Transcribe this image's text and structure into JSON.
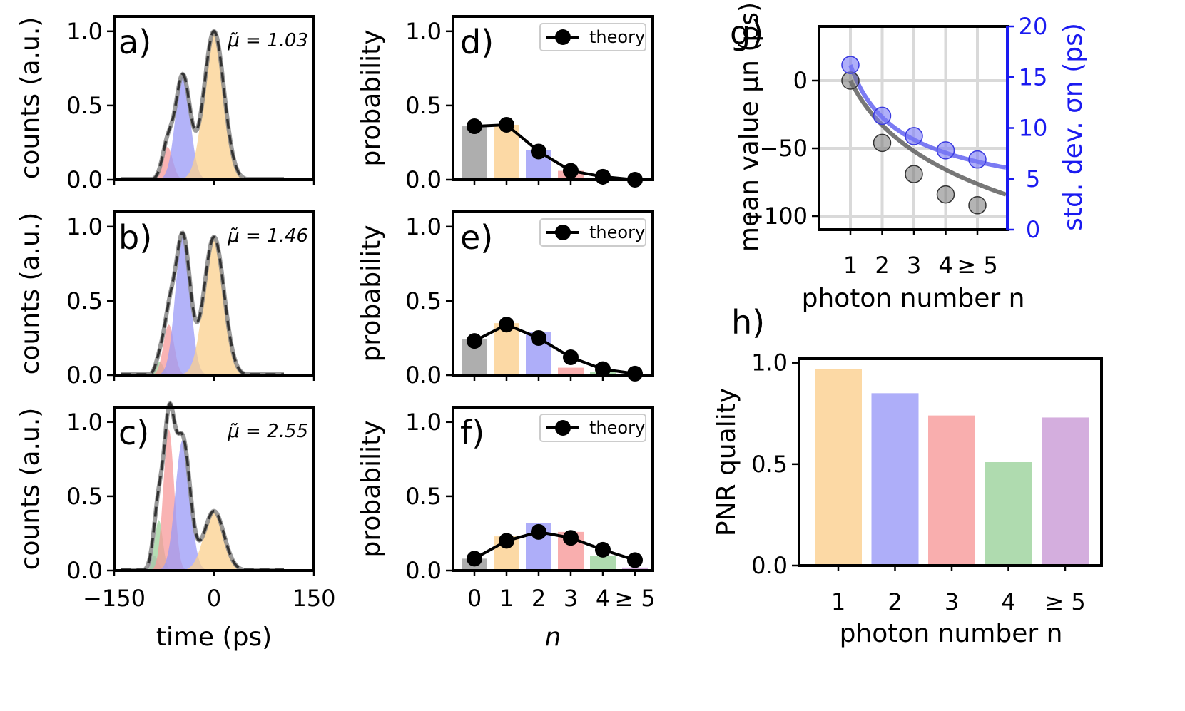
{
  "colors": {
    "n0": "#9a9a9a",
    "n1": "#fbd08e",
    "n2": "#9a9af7",
    "n3": "#f79a9a",
    "n4": "#9bd29b",
    "n5": "#c99ad6",
    "mean": "#555555",
    "std": "#5a5af0",
    "stdaxis": "#1a1af0"
  },
  "chart_data": [
    {
      "id": "a",
      "type": "area",
      "panel_label": "a)",
      "annotation": "μ̃ = 1.03",
      "xlabel": "time (ps)",
      "ylabel": "counts (a.u.)",
      "xlim": [
        -150,
        150
      ],
      "ylim": [
        0,
        1.1
      ],
      "xticks": [
        "−150",
        "0",
        "150"
      ],
      "yticks": [
        "0.0",
        "0.5",
        "1.0"
      ],
      "components": [
        {
          "n": 3,
          "center": -70,
          "sigma": 8,
          "amp": 0.22
        },
        {
          "n": 2,
          "center": -47,
          "sigma": 11,
          "amp": 0.7
        },
        {
          "n": 1,
          "center": 0,
          "sigma": 15,
          "amp": 1.0
        }
      ]
    },
    {
      "id": "b",
      "type": "area",
      "panel_label": "b)",
      "annotation": "μ̃ = 1.46",
      "xlabel": "time (ps)",
      "ylabel": "counts (a.u.)",
      "xlim": [
        -150,
        150
      ],
      "ylim": [
        0,
        1.1
      ],
      "xticks": [
        "−150",
        "0",
        "150"
      ],
      "yticks": [
        "0.0",
        "0.5",
        "1.0"
      ],
      "components": [
        {
          "n": 4,
          "center": -82,
          "sigma": 6,
          "amp": 0.09
        },
        {
          "n": 3,
          "center": -68,
          "sigma": 8,
          "amp": 0.34
        },
        {
          "n": 2,
          "center": -47,
          "sigma": 11,
          "amp": 0.94
        },
        {
          "n": 1,
          "center": 0,
          "sigma": 15,
          "amp": 0.93
        }
      ]
    },
    {
      "id": "c",
      "type": "area",
      "panel_label": "c)",
      "annotation": "μ̃ = 2.55",
      "xlabel": "time (ps)",
      "ylabel": "counts (a.u.)",
      "xlim": [
        -150,
        150
      ],
      "ylim": [
        0,
        1.1
      ],
      "xticks": [
        "−150",
        "0",
        "150"
      ],
      "yticks": [
        "0.0",
        "0.5",
        "1.0"
      ],
      "components": [
        {
          "n": 5,
          "center": -90,
          "sigma": 6,
          "amp": 0.1
        },
        {
          "n": 4,
          "center": -83,
          "sigma": 6,
          "amp": 0.34
        },
        {
          "n": 3,
          "center": -68,
          "sigma": 8,
          "amp": 0.95
        },
        {
          "n": 2,
          "center": -47,
          "sigma": 11,
          "amp": 0.88
        },
        {
          "n": 1,
          "center": 0,
          "sigma": 15,
          "amp": 0.4
        }
      ]
    },
    {
      "id": "d",
      "type": "bar",
      "panel_label": "d)",
      "xlabel": "n",
      "ylabel": "probability",
      "categories": [
        "0",
        "1",
        "2",
        "3",
        "4",
        "≥ 5"
      ],
      "ylim": [
        0,
        1.1
      ],
      "yticks": [
        "0.0",
        "0.5",
        "1.0"
      ],
      "legend": "theory",
      "bars": [
        0.36,
        0.37,
        0.2,
        0.06,
        0.01,
        0.0
      ],
      "theory": [
        0.36,
        0.37,
        0.19,
        0.06,
        0.02,
        0.0
      ]
    },
    {
      "id": "e",
      "type": "bar",
      "panel_label": "e)",
      "xlabel": "n",
      "ylabel": "probability",
      "categories": [
        "0",
        "1",
        "2",
        "3",
        "4",
        "≥ 5"
      ],
      "ylim": [
        0,
        1.1
      ],
      "yticks": [
        "0.0",
        "0.5",
        "1.0"
      ],
      "legend": "theory",
      "bars": [
        0.24,
        0.35,
        0.29,
        0.05,
        0.02,
        0.0
      ],
      "theory": [
        0.23,
        0.34,
        0.25,
        0.12,
        0.04,
        0.01
      ]
    },
    {
      "id": "f",
      "type": "bar",
      "panel_label": "f)",
      "xlabel": "n",
      "ylabel": "probability",
      "categories": [
        "0",
        "1",
        "2",
        "3",
        "4",
        "≥ 5"
      ],
      "ylim": [
        0,
        1.1
      ],
      "yticks": [
        "0.0",
        "0.5",
        "1.0"
      ],
      "legend": "theory",
      "bars": [
        0.08,
        0.23,
        0.32,
        0.26,
        0.1,
        0.02
      ],
      "theory": [
        0.08,
        0.2,
        0.26,
        0.22,
        0.14,
        0.07
      ]
    },
    {
      "id": "g",
      "type": "scatter",
      "panel_label": "g)",
      "xlabel": "photon number n",
      "ylabel_left": "mean value μn (ps)",
      "ylabel_right": "std. dev. σn (ps)",
      "categories": [
        "1",
        "2",
        "3",
        "4",
        "≥ 5"
      ],
      "ylim_left": [
        -110,
        40
      ],
      "ylim_right": [
        0,
        20
      ],
      "yticks_left": [
        "0",
        "−50",
        "−100"
      ],
      "yticks_right": [
        "0",
        "5",
        "10",
        "15",
        "20"
      ],
      "mean_points": [
        0,
        -46,
        -69,
        -84,
        -92
      ],
      "std_points": [
        16.2,
        11.2,
        9.2,
        7.8,
        6.9
      ],
      "mean_fit": {
        "a": -47.4,
        "p": 1.0
      },
      "std_fit": {
        "a": 16.2,
        "p": 0.55
      }
    },
    {
      "id": "h",
      "type": "bar",
      "panel_label": "h)",
      "xlabel": "photon number n",
      "ylabel": "PNR quality",
      "categories": [
        "1",
        "2",
        "3",
        "4",
        "≥ 5"
      ],
      "values": [
        0.97,
        0.85,
        0.74,
        0.51,
        0.73
      ],
      "ylim": [
        0,
        1.02
      ],
      "yticks": [
        "0.0",
        "0.5",
        "1.0"
      ]
    }
  ]
}
